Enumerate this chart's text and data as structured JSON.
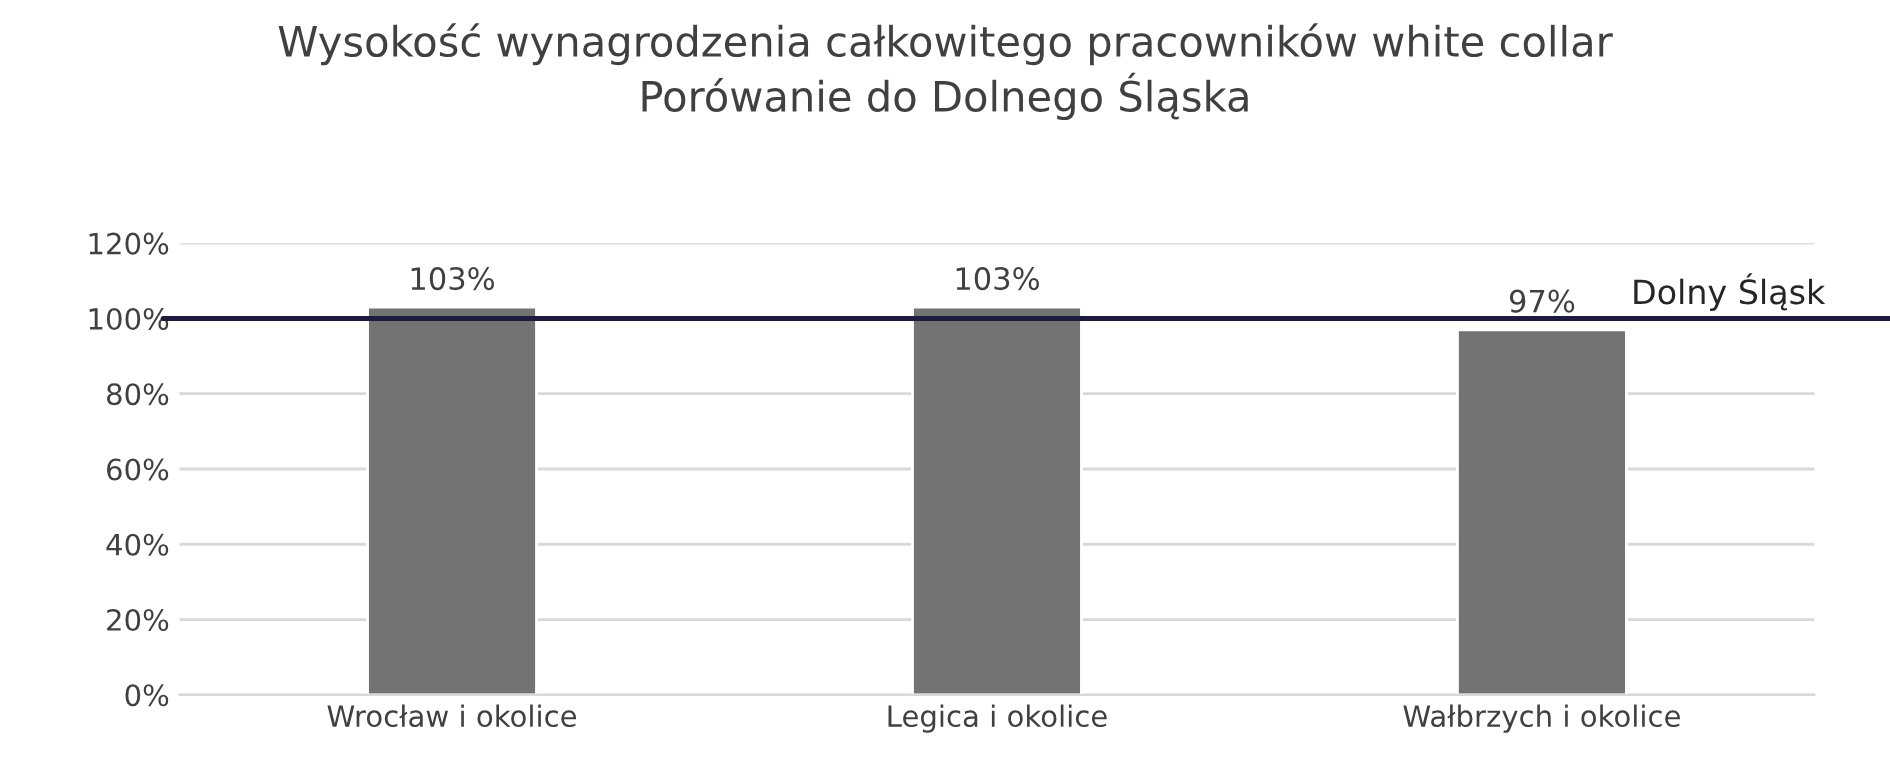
{
  "chart_data": {
    "type": "bar",
    "title": "Wysokość wynagrodzenia całkowitego pracowników white collar\nPorówanie do Dolnego Śląska",
    "categories": [
      "Wrocław i okolice",
      "Legica i okolice",
      "Wałbrzych i okolice"
    ],
    "values": [
      103,
      103,
      97
    ],
    "color": "#737373",
    "value_labels": [
      "103%",
      "103%",
      "97%"
    ],
    "ylim": [
      0,
      120
    ],
    "yticks": [
      {
        "value": 0,
        "label": "0%"
      },
      {
        "value": 20,
        "label": "20%"
      },
      {
        "value": 40,
        "label": "40%"
      },
      {
        "value": 60,
        "label": "60%"
      },
      {
        "value": 80,
        "label": "80%"
      },
      {
        "value": 100,
        "label": "100%"
      },
      {
        "value": 120,
        "label": "120%"
      }
    ],
    "ref_lines": [
      {
        "axis": "y",
        "value": 100,
        "label": "Dolny Śląsk",
        "color": "#1c1a3d"
      }
    ],
    "grid": "y"
  }
}
